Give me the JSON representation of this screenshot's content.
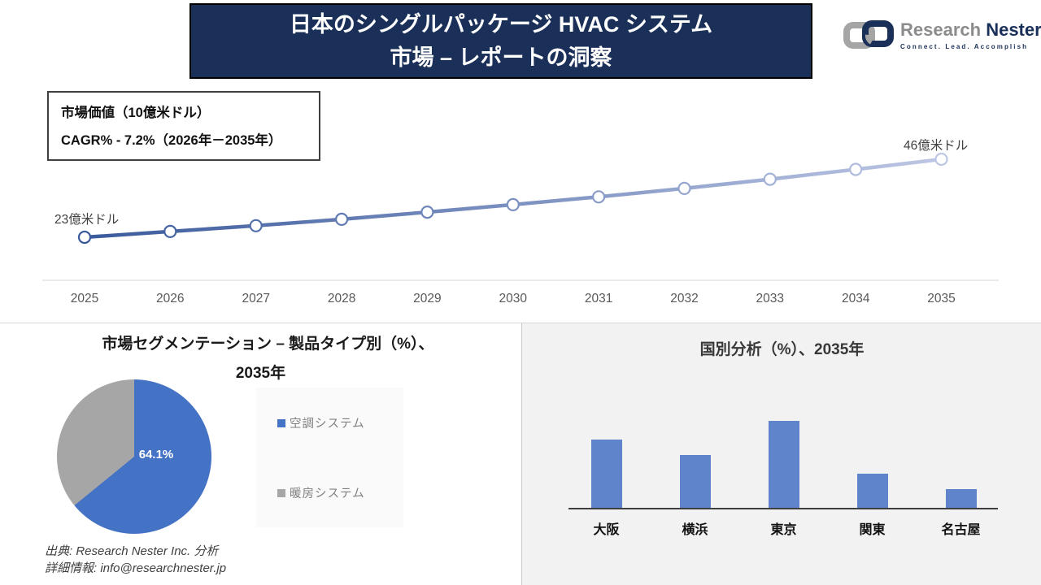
{
  "header": {
    "title_line1": "日本のシングルパッケージ HVAC システム",
    "title_line2": "市場 – レポートの洞察",
    "banner_color": "#1B3058",
    "logo": {
      "icon": "interlocked-chain-links-icon",
      "name_part1": "Research",
      "name_part2": "Nester",
      "tagline": "Connect. Lead. Accomplish"
    }
  },
  "info_box": {
    "line1": "市場価値（10億米ドル）",
    "line2": "CAGR% - 7.2%（2026年－2035年）"
  },
  "chart_data": [
    {
      "id": "market-value-line",
      "type": "line",
      "x": [
        2025,
        2026,
        2027,
        2028,
        2029,
        2030,
        2031,
        2032,
        2033,
        2034,
        2035
      ],
      "values": [
        23,
        24.7,
        26.4,
        28.3,
        30.4,
        32.6,
        34.9,
        37.4,
        40.1,
        43.0,
        46
      ],
      "ylim": [
        20,
        50
      ],
      "grid": false,
      "legend": "none",
      "point_labels": {
        "first": "23億米ドル",
        "last": "46億米ドル"
      },
      "line_gradient": [
        "#3A5A9C",
        "#BDC7E4"
      ],
      "marker": "open-circle-white",
      "axis_color": "#D6D6D6",
      "tick_color": "#595959"
    },
    {
      "id": "product-type-pie",
      "type": "pie",
      "title_line1": "市場セグメンテーション – 製品タイプ別（%）、",
      "title_line2": "2035年",
      "slices": [
        {
          "label": "空調システム",
          "value": 64.1,
          "data_label": "64.1%",
          "color": "#4472C4"
        },
        {
          "label": "暖房システム",
          "value": 35.9,
          "data_label": "",
          "color": "#A6A6A6"
        }
      ],
      "legend_position": "right"
    },
    {
      "id": "country-analysis-bar",
      "type": "bar",
      "title": "国別分析（%）、2035年",
      "categories": [
        "大阪",
        "横浜",
        "東京",
        "関東",
        "名古屋"
      ],
      "values": [
        26,
        20,
        33,
        13,
        7
      ],
      "ylim": [
        0,
        37
      ],
      "grid": false,
      "bar_color": "#5F84CC",
      "axis_color": "#3F3F3F"
    }
  ],
  "footer": {
    "source": "出典: Research Nester Inc. 分析",
    "contact": "詳細情報: info@researchnester.jp"
  }
}
